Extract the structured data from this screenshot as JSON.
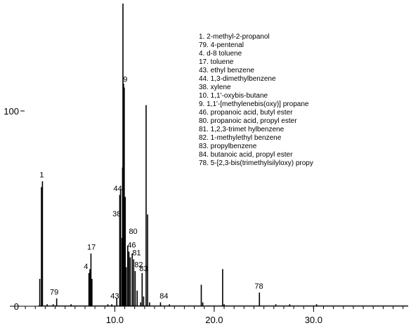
{
  "chart_data": {
    "type": "bar",
    "title": "",
    "xlabel": "",
    "ylabel": "",
    "xlim": [
      0.5,
      39.8
    ],
    "ylim": [
      0,
      155
    ],
    "x_ticks": [
      10.0,
      20.0,
      30.0
    ],
    "x_tick_labels": [
      "10.0",
      "20.0",
      "30.0"
    ],
    "x_minor_step": 1,
    "y_ticks": [
      0,
      100
    ],
    "y_tick_labels": [
      "0",
      "100"
    ],
    "grid": false,
    "legend_position": "top-right",
    "legend": [
      "1.  2-methyl-2-propanol",
      "79. 4-pentenal",
      "4.  d-8 toluene",
      "17. toluene",
      "43. ethyl benzene",
      "44. 1,3-dimethylbenzene",
      "38. xylene",
      "10. 1,1'-oxybis-butane",
      "9.  1,1'-[methylenebis(oxy)] propane",
      "46. propanoic acid, butyl ester",
      "80. propanoic acid, propyl ester",
      "81. 1,2,3-trimet hylbenzene",
      "82. 1-methylethyl benzene",
      "83. propylbenzene",
      "84. butanoic acid, propyl ester",
      "78. 5-[2,3-bis(trimethylsilyloxy) propy"
    ],
    "peaks": [
      {
        "x": 2.45,
        "y": 14
      },
      {
        "x": 2.62,
        "y": 61
      },
      {
        "x": 2.72,
        "y": 64
      },
      {
        "x": 3.2,
        "y": 1
      },
      {
        "x": 3.8,
        "y": 1
      },
      {
        "x": 4.15,
        "y": 4
      },
      {
        "x": 5.6,
        "y": 1
      },
      {
        "x": 7.4,
        "y": 17
      },
      {
        "x": 7.5,
        "y": 19
      },
      {
        "x": 7.6,
        "y": 27
      },
      {
        "x": 7.7,
        "y": 14
      },
      {
        "x": 9.3,
        "y": 1
      },
      {
        "x": 9.7,
        "y": 1
      },
      {
        "x": 10.2,
        "y": 4
      },
      {
        "x": 10.5,
        "y": 57
      },
      {
        "x": 10.58,
        "y": 60
      },
      {
        "x": 10.72,
        "y": 35
      },
      {
        "x": 10.78,
        "y": 71
      },
      {
        "x": 10.82,
        "y": 155
      },
      {
        "x": 10.88,
        "y": 114
      },
      {
        "x": 10.95,
        "y": 112
      },
      {
        "x": 11.05,
        "y": 56
      },
      {
        "x": 11.15,
        "y": 20
      },
      {
        "x": 11.3,
        "y": 31
      },
      {
        "x": 11.42,
        "y": 28
      },
      {
        "x": 11.55,
        "y": 25
      },
      {
        "x": 11.75,
        "y": 27
      },
      {
        "x": 11.9,
        "y": 24
      },
      {
        "x": 12.05,
        "y": 18
      },
      {
        "x": 12.25,
        "y": 8
      },
      {
        "x": 12.6,
        "y": 2
      },
      {
        "x": 12.75,
        "y": 17
      },
      {
        "x": 12.9,
        "y": 5
      },
      {
        "x": 13.15,
        "y": 103
      },
      {
        "x": 13.3,
        "y": 47
      },
      {
        "x": 13.5,
        "y": 2
      },
      {
        "x": 14.6,
        "y": 2
      },
      {
        "x": 15.5,
        "y": 1
      },
      {
        "x": 18.7,
        "y": 11
      },
      {
        "x": 18.85,
        "y": 2
      },
      {
        "x": 20.85,
        "y": 19
      },
      {
        "x": 21.0,
        "y": 1
      },
      {
        "x": 24.55,
        "y": 7
      },
      {
        "x": 26.2,
        "y": 1
      },
      {
        "x": 27.6,
        "y": 1
      },
      {
        "x": 30.3,
        "y": 1
      }
    ],
    "peak_labels": [
      {
        "text": "1",
        "x": 2.65,
        "y": 66
      },
      {
        "text": "79",
        "x": 3.9,
        "y": 6
      },
      {
        "text": "4",
        "x": 7.1,
        "y": 19
      },
      {
        "text": "17",
        "x": 7.65,
        "y": 29
      },
      {
        "text": "43",
        "x": 10.0,
        "y": 4
      },
      {
        "text": "44",
        "x": 10.3,
        "y": 59
      },
      {
        "text": "38",
        "x": 10.2,
        "y": 46
      },
      {
        "text": "9",
        "x": 11.05,
        "y": 115
      },
      {
        "text": "80",
        "x": 11.85,
        "y": 37
      },
      {
        "text": "46",
        "x": 11.7,
        "y": 30
      },
      {
        "text": "81",
        "x": 12.2,
        "y": 26
      },
      {
        "text": "82",
        "x": 12.4,
        "y": 20
      },
      {
        "text": "83",
        "x": 12.9,
        "y": 18
      },
      {
        "text": "84",
        "x": 14.95,
        "y": 4
      },
      {
        "text": "78",
        "x": 24.5,
        "y": 9
      }
    ]
  }
}
